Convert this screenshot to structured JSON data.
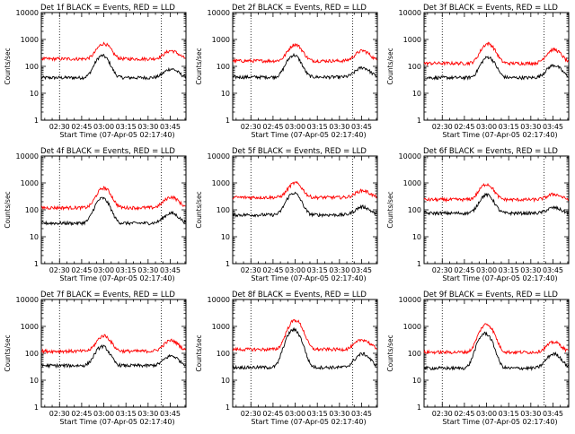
{
  "chart_data": [
    {
      "type": "line",
      "title": "Det 1f BLACK = Events, RED = LLD",
      "xlabel": "Start Time (07-Apr-05 02:17:40)",
      "ylabel": "Counts/sec",
      "ylog": true,
      "ylim": [
        1,
        10000
      ],
      "ytick_labels": [
        "1",
        "10",
        "100",
        "1000",
        "10000"
      ],
      "xtick_labels": [
        "02:30",
        "02:45",
        "03:00",
        "03:15",
        "03:30",
        "03:45"
      ],
      "series": [
        {
          "name": "BLACK = Events",
          "color": "#000000",
          "base": 38,
          "peak": 250,
          "peak_time": "02:59",
          "late_peak": 80
        },
        {
          "name": "RED = LLD",
          "color": "#ff0000",
          "base": 190,
          "peak": 700,
          "peak_time": "03:00",
          "late_peak": 380
        }
      ],
      "dotted_lines": [
        "02:30",
        "03:39"
      ]
    },
    {
      "type": "line",
      "title": "Det 2f BLACK = Events, RED = LLD",
      "xlabel": "Start Time (07-Apr-05 02:17:40)",
      "ylabel": "Counts/sec",
      "ylog": true,
      "ylim": [
        1,
        10000
      ],
      "ytick_labels": [
        "1",
        "10",
        "100",
        "1000",
        "10000"
      ],
      "xtick_labels": [
        "02:30",
        "02:45",
        "03:00",
        "03:15",
        "03:30",
        "03:45"
      ],
      "series": [
        {
          "name": "BLACK = Events",
          "color": "#000000",
          "base": 40,
          "peak": 260,
          "peak_time": "02:59",
          "late_peak": 90
        },
        {
          "name": "RED = LLD",
          "color": "#ff0000",
          "base": 160,
          "peak": 650,
          "peak_time": "03:00",
          "late_peak": 380
        }
      ],
      "dotted_lines": [
        "02:30",
        "03:39"
      ]
    },
    {
      "type": "line",
      "title": "Det 3f BLACK = Events, RED = LLD",
      "xlabel": "Start Time (07-Apr-05 02:17:40)",
      "ylabel": "Counts/sec",
      "ylog": true,
      "ylim": [
        1,
        10000
      ],
      "ytick_labels": [
        "1",
        "10",
        "100",
        "1000",
        "10000"
      ],
      "xtick_labels": [
        "02:30",
        "02:45",
        "03:00",
        "03:15",
        "03:30",
        "03:45"
      ],
      "series": [
        {
          "name": "BLACK = Events",
          "color": "#000000",
          "base": 38,
          "peak": 220,
          "peak_time": "03:01",
          "late_peak": 110
        },
        {
          "name": "RED = LLD",
          "color": "#ff0000",
          "base": 130,
          "peak": 700,
          "peak_time": "03:01",
          "late_peak": 420
        }
      ],
      "dotted_lines": [
        "02:30",
        "03:39"
      ]
    },
    {
      "type": "line",
      "title": "Det 4f BLACK = Events, RED = LLD",
      "xlabel": "Start Time (07-Apr-05 02:17:40)",
      "ylabel": "Counts/sec",
      "ylog": true,
      "ylim": [
        1,
        10000
      ],
      "ytick_labels": [
        "1",
        "10",
        "100",
        "1000",
        "10000"
      ],
      "xtick_labels": [
        "02:30",
        "02:45",
        "03:00",
        "03:15",
        "03:30",
        "03:45"
      ],
      "series": [
        {
          "name": "BLACK = Events",
          "color": "#000000",
          "base": 32,
          "peak": 270,
          "peak_time": "02:59",
          "late_peak": 75
        },
        {
          "name": "RED = LLD",
          "color": "#ff0000",
          "base": 120,
          "peak": 650,
          "peak_time": "03:00",
          "late_peak": 300
        }
      ],
      "dotted_lines": [
        "02:30",
        "03:39"
      ]
    },
    {
      "type": "line",
      "title": "Det 5f BLACK = Events, RED = LLD",
      "xlabel": "Start Time (07-Apr-05 02:17:40)",
      "ylabel": "Counts/sec",
      "ylog": true,
      "ylim": [
        1,
        10000
      ],
      "ytick_labels": [
        "1",
        "10",
        "100",
        "1000",
        "10000"
      ],
      "xtick_labels": [
        "02:30",
        "02:45",
        "03:00",
        "03:15",
        "03:30",
        "03:45"
      ],
      "series": [
        {
          "name": "BLACK = Events",
          "color": "#000000",
          "base": 65,
          "peak": 420,
          "peak_time": "02:59",
          "late_peak": 130
        },
        {
          "name": "RED = LLD",
          "color": "#ff0000",
          "base": 290,
          "peak": 1000,
          "peak_time": "03:00",
          "late_peak": 520
        }
      ],
      "dotted_lines": [
        "02:30",
        "03:39"
      ]
    },
    {
      "type": "line",
      "title": "Det 6f BLACK = Events, RED = LLD",
      "xlabel": "Start Time (07-Apr-05 02:17:40)",
      "ylabel": "Counts/sec",
      "ylog": true,
      "ylim": [
        1,
        10000
      ],
      "ytick_labels": [
        "1",
        "10",
        "100",
        "1000",
        "10000"
      ],
      "xtick_labels": [
        "02:30",
        "02:45",
        "03:00",
        "03:15",
        "03:30",
        "03:45"
      ],
      "series": [
        {
          "name": "BLACK = Events",
          "color": "#000000",
          "base": 75,
          "peak": 360,
          "peak_time": "03:00",
          "late_peak": 120
        },
        {
          "name": "RED = LLD",
          "color": "#ff0000",
          "base": 240,
          "peak": 900,
          "peak_time": "03:00",
          "late_peak": 380
        }
      ],
      "dotted_lines": [
        "02:30",
        "03:39"
      ]
    },
    {
      "type": "line",
      "title": "Det 7f BLACK = Events, RED = LLD",
      "xlabel": "Start Time (07-Apr-05 02:17:40)",
      "ylabel": "Counts/sec",
      "ylog": true,
      "ylim": [
        1,
        10000
      ],
      "ytick_labels": [
        "1",
        "10",
        "100",
        "1000",
        "10000"
      ],
      "xtick_labels": [
        "02:30",
        "02:45",
        "03:00",
        "03:15",
        "03:30",
        "03:45"
      ],
      "series": [
        {
          "name": "BLACK = Events",
          "color": "#000000",
          "base": 35,
          "peak": 180,
          "peak_time": "02:59",
          "late_peak": 80
        },
        {
          "name": "RED = LLD",
          "color": "#ff0000",
          "base": 120,
          "peak": 450,
          "peak_time": "03:00",
          "late_peak": 300
        }
      ],
      "dotted_lines": [
        "02:30",
        "03:39"
      ]
    },
    {
      "type": "line",
      "title": "Det 8f BLACK = Events, RED = LLD",
      "xlabel": "Start Time (07-Apr-05 02:17:40)",
      "ylabel": "Counts/sec",
      "ylog": true,
      "ylim": [
        1,
        10000
      ],
      "ytick_labels": [
        "1",
        "10",
        "100",
        "1000",
        "10000"
      ],
      "xtick_labels": [
        "02:30",
        "02:45",
        "03:00",
        "03:15",
        "03:30",
        "03:45"
      ],
      "series": [
        {
          "name": "BLACK = Events",
          "color": "#000000",
          "base": 30,
          "peak": 750,
          "peak_time": "02:59",
          "late_peak": 95
        },
        {
          "name": "RED = LLD",
          "color": "#ff0000",
          "base": 140,
          "peak": 1700,
          "peak_time": "03:00",
          "late_peak": 320
        }
      ],
      "dotted_lines": [
        "02:30",
        "03:39"
      ]
    },
    {
      "type": "line",
      "title": "Det 9f BLACK = Events, RED = LLD",
      "xlabel": "Start Time (07-Apr-05 02:17:40)",
      "ylabel": "Counts/sec",
      "ylog": true,
      "ylim": [
        1,
        10000
      ],
      "ytick_labels": [
        "1",
        "10",
        "100",
        "1000",
        "10000"
      ],
      "xtick_labels": [
        "02:30",
        "02:45",
        "03:00",
        "03:15",
        "03:30",
        "03:45"
      ],
      "series": [
        {
          "name": "BLACK = Events",
          "color": "#000000",
          "base": 28,
          "peak": 550,
          "peak_time": "02:59",
          "late_peak": 95
        },
        {
          "name": "RED = LLD",
          "color": "#ff0000",
          "base": 110,
          "peak": 1200,
          "peak_time": "03:00",
          "late_peak": 260
        }
      ],
      "dotted_lines": [
        "02:30",
        "03:39"
      ]
    }
  ]
}
